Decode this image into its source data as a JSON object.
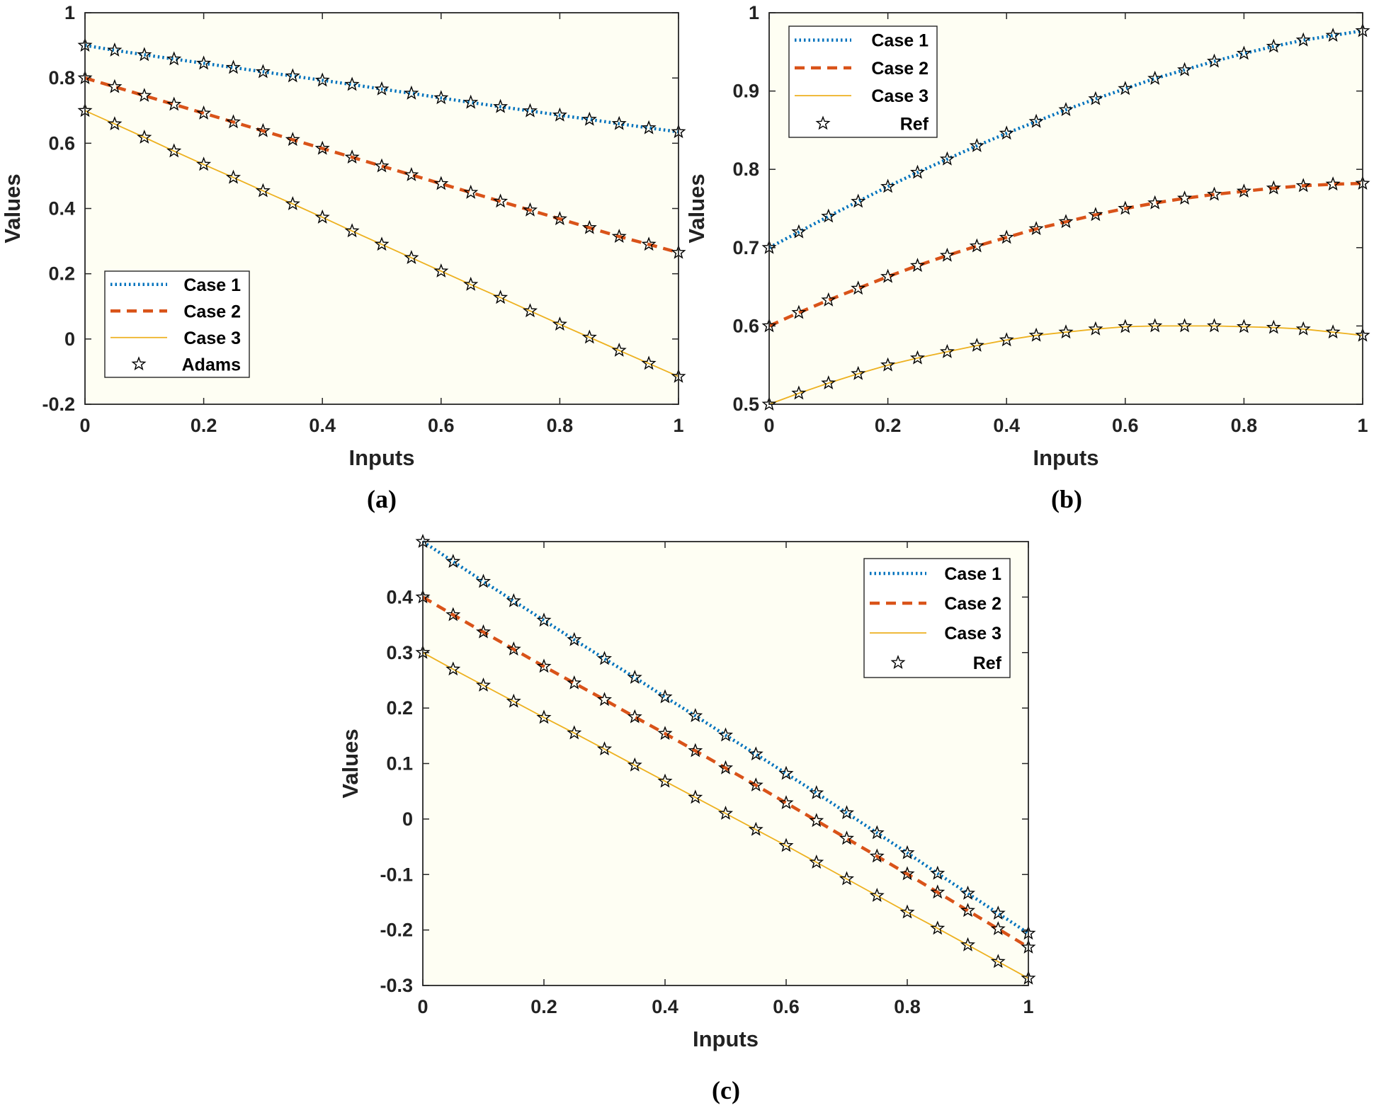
{
  "colors": {
    "case1": "#0072BD",
    "case2": "#D95319",
    "case3": "#EDB120",
    "plot_bg": "#FEFEF3"
  },
  "chart_data": [
    {
      "type": "line",
      "panel": "a",
      "caption": "(a)",
      "title": "",
      "xlabel": "Inputs",
      "ylabel": "Values",
      "xlim": [
        0,
        1
      ],
      "ylim": [
        -0.2,
        1
      ],
      "xticks": [
        0,
        0.2,
        0.4,
        0.6,
        0.8,
        1
      ],
      "xtick_labels": [
        "0",
        "0.2",
        "0.4",
        "0.6",
        "0.8",
        "1"
      ],
      "yticks": [
        -0.2,
        0,
        0.2,
        0.4,
        0.6,
        0.8,
        1
      ],
      "ytick_labels": [
        "-0.2",
        "0",
        "0.2",
        "0.4",
        "0.6",
        "0.8",
        "1"
      ],
      "legend_position": "bottom-left",
      "x": [
        0,
        0.05,
        0.1,
        0.15,
        0.2,
        0.25,
        0.3,
        0.35,
        0.4,
        0.45,
        0.5,
        0.55,
        0.6,
        0.65,
        0.7,
        0.75,
        0.8,
        0.85,
        0.9,
        0.95,
        1
      ],
      "series": [
        {
          "name": "Case 1",
          "style": "dotted",
          "values": [
            0.9,
            0.885,
            0.871,
            0.858,
            0.845,
            0.832,
            0.819,
            0.806,
            0.793,
            0.78,
            0.766,
            0.753,
            0.739,
            0.725,
            0.712,
            0.699,
            0.686,
            0.673,
            0.66,
            0.647,
            0.635
          ]
        },
        {
          "name": "Case 2",
          "style": "dashed",
          "values": [
            0.8,
            0.773,
            0.746,
            0.719,
            0.692,
            0.665,
            0.638,
            0.611,
            0.584,
            0.557,
            0.53,
            0.503,
            0.476,
            0.449,
            0.422,
            0.395,
            0.368,
            0.341,
            0.314,
            0.29,
            0.265
          ]
        },
        {
          "name": "Case 3",
          "style": "solid",
          "values": [
            0.7,
            0.659,
            0.618,
            0.576,
            0.535,
            0.495,
            0.454,
            0.414,
            0.373,
            0.331,
            0.29,
            0.249,
            0.208,
            0.167,
            0.127,
            0.086,
            0.045,
            0.005,
            -0.035,
            -0.075,
            -0.115
          ]
        },
        {
          "name": "Adams",
          "style": "markers",
          "marker_on": [
            "Case 1",
            "Case 2",
            "Case 3"
          ]
        }
      ]
    },
    {
      "type": "line",
      "panel": "b",
      "caption": "(b)",
      "title": "",
      "xlabel": "Inputs",
      "ylabel": "Values",
      "xlim": [
        0,
        1
      ],
      "ylim": [
        0.5,
        1
      ],
      "xticks": [
        0,
        0.2,
        0.4,
        0.6,
        0.8,
        1
      ],
      "xtick_labels": [
        "0",
        "0.2",
        "0.4",
        "0.6",
        "0.8",
        "1"
      ],
      "yticks": [
        0.5,
        0.6,
        0.7,
        0.8,
        0.9,
        1
      ],
      "ytick_labels": [
        "0.5",
        "0.6",
        "0.7",
        "0.8",
        "0.9",
        "1"
      ],
      "legend_position": "top-left",
      "x": [
        0,
        0.05,
        0.1,
        0.15,
        0.2,
        0.25,
        0.3,
        0.35,
        0.4,
        0.45,
        0.5,
        0.55,
        0.6,
        0.65,
        0.7,
        0.75,
        0.8,
        0.85,
        0.9,
        0.95,
        1
      ],
      "series": [
        {
          "name": "Case 1",
          "style": "dotted",
          "values": [
            0.7,
            0.72,
            0.74,
            0.759,
            0.778,
            0.796,
            0.813,
            0.83,
            0.846,
            0.861,
            0.876,
            0.89,
            0.903,
            0.916,
            0.927,
            0.938,
            0.948,
            0.957,
            0.965,
            0.971,
            0.977
          ]
        },
        {
          "name": "Case 2",
          "style": "dashed",
          "values": [
            0.6,
            0.617,
            0.633,
            0.648,
            0.663,
            0.677,
            0.69,
            0.702,
            0.713,
            0.724,
            0.733,
            0.742,
            0.75,
            0.757,
            0.763,
            0.768,
            0.772,
            0.776,
            0.779,
            0.781,
            0.782
          ]
        },
        {
          "name": "Case 3",
          "style": "solid",
          "values": [
            0.5,
            0.514,
            0.527,
            0.539,
            0.55,
            0.559,
            0.567,
            0.575,
            0.582,
            0.588,
            0.592,
            0.596,
            0.599,
            0.6,
            0.6,
            0.6,
            0.599,
            0.598,
            0.596,
            0.592,
            0.588
          ]
        },
        {
          "name": "Ref",
          "style": "markers",
          "marker_on": [
            "Case 1",
            "Case 2",
            "Case 3"
          ]
        }
      ]
    },
    {
      "type": "line",
      "panel": "c",
      "caption": "(c)",
      "title": "",
      "xlabel": "Inputs",
      "ylabel": "Values",
      "xlim": [
        0,
        1
      ],
      "ylim": [
        -0.3,
        0.5
      ],
      "xticks": [
        0,
        0.2,
        0.4,
        0.6,
        0.8,
        1
      ],
      "xtick_labels": [
        "0",
        "0.2",
        "0.4",
        "0.6",
        "0.8",
        "1"
      ],
      "yticks": [
        -0.3,
        -0.2,
        -0.1,
        0,
        0.1,
        0.2,
        0.3,
        0.4
      ],
      "ytick_labels": [
        "-0.3",
        "-0.2",
        "-0.1",
        "0",
        "0.1",
        "0.2",
        "0.3",
        "0.4"
      ],
      "legend_position": "top-right",
      "x": [
        0,
        0.05,
        0.1,
        0.15,
        0.2,
        0.25,
        0.3,
        0.35,
        0.4,
        0.45,
        0.5,
        0.55,
        0.6,
        0.65,
        0.7,
        0.75,
        0.8,
        0.85,
        0.9,
        0.95,
        1
      ],
      "series": [
        {
          "name": "Case 1",
          "style": "dotted",
          "values": [
            0.5,
            0.464,
            0.428,
            0.393,
            0.358,
            0.323,
            0.289,
            0.255,
            0.22,
            0.186,
            0.151,
            0.117,
            0.082,
            0.047,
            0.011,
            -0.025,
            -0.061,
            -0.098,
            -0.134,
            -0.17,
            -0.206
          ]
        },
        {
          "name": "Case 2",
          "style": "dashed",
          "values": [
            0.4,
            0.368,
            0.337,
            0.306,
            0.275,
            0.245,
            0.215,
            0.184,
            0.154,
            0.123,
            0.092,
            0.061,
            0.029,
            -0.003,
            -0.035,
            -0.067,
            -0.099,
            -0.132,
            -0.165,
            -0.198,
            -0.231
          ]
        },
        {
          "name": "Case 3",
          "style": "solid",
          "values": [
            0.3,
            0.27,
            0.241,
            0.212,
            0.183,
            0.155,
            0.126,
            0.097,
            0.068,
            0.039,
            0.01,
            -0.019,
            -0.048,
            -0.078,
            -0.108,
            -0.138,
            -0.168,
            -0.197,
            -0.227,
            -0.257,
            -0.287
          ]
        },
        {
          "name": "Ref",
          "style": "markers",
          "marker_on": [
            "Case 1",
            "Case 2",
            "Case 3"
          ]
        }
      ]
    }
  ]
}
